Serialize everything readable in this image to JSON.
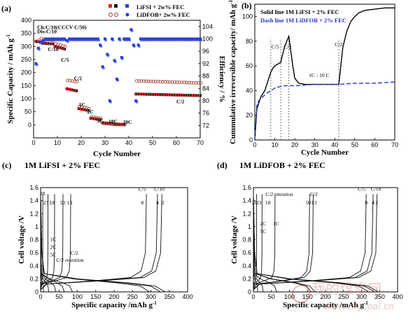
{
  "chart_data": [
    {
      "id": "a",
      "panel_label": "(a)",
      "type": "scatter",
      "xlabel": "Cycle Number",
      "ylabel": "Specific Capacity / mAh g",
      "ylabel_sup": "-1",
      "y2label": "Efficiency / %",
      "xlim": [
        0,
        70
      ],
      "ylim": [
        -50,
        400
      ],
      "y2lim": [
        68,
        106
      ],
      "xticks": [
        0,
        10,
        20,
        30,
        40,
        50,
        60,
        70
      ],
      "yticks": [
        0,
        50,
        100,
        150,
        200,
        250,
        300,
        350,
        400
      ],
      "y2ticks": [
        72,
        76,
        80,
        84,
        88,
        92,
        96,
        100,
        104
      ],
      "legend": [
        "LiFSI + 2w% FEC",
        "LiDFOB+ 2w% FEC"
      ],
      "colors": {
        "lifsi": "#e8201a",
        "lidfob": "#9a3b2c",
        "eff": "#2a3fd6"
      },
      "annotations": [
        {
          "text": "Ch:C/10(CCCV C/50)",
          "x": 1.5,
          "y": 367
        },
        {
          "text": "Dis:C/10",
          "x": 1.5,
          "y": 350
        },
        {
          "text": "C/10",
          "x": 6,
          "y": 282
        },
        {
          "text": "C/5",
          "x": 11.5,
          "y": 242
        },
        {
          "text": "C/2",
          "x": 17,
          "y": 171
        },
        {
          "text": "1C",
          "x": 19,
          "y": 71
        },
        {
          "text": "2C",
          "x": 22.5,
          "y": 44
        },
        {
          "text": "5C",
          "x": 26.5,
          "y": 8
        },
        {
          "text": "10C",
          "x": 31.5,
          "y": 6
        },
        {
          "text": "20C",
          "x": 37.5,
          "y": 3
        },
        {
          "text": "C/2",
          "x": 60,
          "y": 82
        }
      ],
      "series": [
        {
          "name": "LiFSI + 2w% FEC",
          "marker": "square-filled",
          "segments": [
            {
              "x0": 1,
              "x1": 3,
              "y0": 320,
              "y1": 316
            },
            {
              "x0": 4,
              "x1": 8,
              "y0": 312,
              "y1": 310
            },
            {
              "x0": 9,
              "x1": 13,
              "y0": 300,
              "y1": 290
            },
            {
              "x0": 14,
              "x1": 18,
              "y0": 138,
              "y1": 130
            },
            {
              "x0": 19,
              "x1": 23,
              "y0": 62,
              "y1": 55
            },
            {
              "x0": 24,
              "x1": 28,
              "y0": 25,
              "y1": 20
            },
            {
              "x0": 29,
              "x1": 33,
              "y0": 8,
              "y1": 5
            },
            {
              "x0": 34,
              "x1": 38,
              "y0": 3,
              "y1": 2
            },
            {
              "x0": 43,
              "x1": 70,
              "y0": 118,
              "y1": 112
            }
          ]
        },
        {
          "name": "LiDFOB+ 2w% FEC",
          "marker": "circle-open",
          "segments": [
            {
              "x0": 1,
              "x1": 3,
              "y0": 318,
              "y1": 330
            },
            {
              "x0": 4,
              "x1": 8,
              "y0": 326,
              "y1": 324
            },
            {
              "x0": 9,
              "x1": 13,
              "y0": 310,
              "y1": 300
            },
            {
              "x0": 14,
              "x1": 18,
              "y0": 170,
              "y1": 165
            },
            {
              "x0": 19,
              "x1": 23,
              "y0": 70,
              "y1": 62
            },
            {
              "x0": 24,
              "x1": 28,
              "y0": 30,
              "y1": 25
            },
            {
              "x0": 29,
              "x1": 33,
              "y0": 5,
              "y1": 2
            },
            {
              "x0": 34,
              "x1": 38,
              "y0": 1,
              "y1": 0
            },
            {
              "x0": 43,
              "x1": 70,
              "y0": 168,
              "y1": 160
            }
          ]
        },
        {
          "name": "",
          "axis": "y2",
          "marker": "square-filled",
          "points": [
            [
              1,
              92
            ],
            [
              2,
              97
            ],
            [
              3,
              99
            ],
            [
              4,
              99.5
            ],
            [
              5,
              100
            ],
            [
              6,
              100
            ],
            [
              7,
              100
            ],
            [
              8,
              100
            ],
            [
              9,
              100
            ],
            [
              10,
              100
            ],
            [
              11,
              100
            ],
            [
              12,
              100
            ],
            [
              13,
              100
            ],
            [
              14,
              99.5
            ],
            [
              15,
              100
            ],
            [
              16,
              100
            ],
            [
              17,
              100
            ],
            [
              18,
              100
            ],
            [
              19,
              100
            ],
            [
              20,
              100
            ],
            [
              21,
              100
            ],
            [
              22,
              100
            ],
            [
              23,
              100
            ],
            [
              24,
              100
            ],
            [
              25,
              100
            ],
            [
              26,
              100
            ],
            [
              27,
              100
            ],
            [
              28,
              98
            ],
            [
              29,
              91
            ],
            [
              30,
              100
            ],
            [
              31,
              95
            ],
            [
              32,
              80
            ],
            [
              33,
              100
            ],
            [
              34,
              93
            ],
            [
              35,
              87
            ],
            [
              36,
              100
            ],
            [
              37,
              94
            ],
            [
              38,
              100
            ],
            [
              39,
              100
            ],
            [
              40,
              100
            ],
            [
              41,
              103
            ],
            [
              42,
              98
            ],
            [
              43,
              80
            ],
            [
              44,
              98
            ],
            [
              45,
              100
            ],
            [
              46,
              100
            ],
            [
              47,
              100
            ],
            [
              48,
              100
            ],
            [
              49,
              100
            ],
            [
              50,
              100
            ],
            [
              51,
              100
            ],
            [
              52,
              100
            ],
            [
              53,
              100
            ],
            [
              54,
              100
            ],
            [
              55,
              100
            ],
            [
              56,
              100
            ],
            [
              57,
              100
            ],
            [
              58,
              100
            ],
            [
              59,
              100
            ],
            [
              60,
              100
            ],
            [
              61,
              100
            ],
            [
              62,
              100
            ],
            [
              63,
              100
            ],
            [
              64,
              100
            ],
            [
              65,
              100
            ],
            [
              66,
              100
            ],
            [
              67,
              100
            ],
            [
              68,
              100
            ],
            [
              69,
              100
            ],
            [
              70,
              100
            ]
          ]
        }
      ]
    },
    {
      "id": "b",
      "panel_label": "(b)",
      "type": "line",
      "xlabel": "Cycle Number",
      "ylabel": "Cummulative irreversible capacity/ mAh g",
      "ylabel_sup": "-1",
      "xlim": [
        0,
        70
      ],
      "ylim": [
        0,
        110
      ],
      "xticks": [
        0,
        10,
        20,
        30,
        40,
        50,
        60,
        70
      ],
      "yticks": [
        0,
        20,
        40,
        60,
        80,
        100
      ],
      "legend": [
        "Solid line 1M LiFSI + 2% FEC",
        "Dash line 1M LiDFOB + 2% FEC"
      ],
      "vlines": [
        8,
        13,
        17,
        42
      ],
      "annotations": [
        {
          "text": "C/5",
          "x": 8.3,
          "y": 74
        },
        {
          "text": "C/2",
          "x": 14.5,
          "y": 74
        },
        {
          "text": "1C - 10 C",
          "x": 27,
          "y": 51
        },
        {
          "text": "C/2",
          "x": 40,
          "y": 76
        }
      ],
      "series": [
        {
          "name": "Solid line 1M LiFSI + 2% FEC",
          "style": "solid",
          "color": "#000000",
          "points": [
            [
              0,
              0
            ],
            [
              1,
              25
            ],
            [
              2,
              30
            ],
            [
              3,
              35
            ],
            [
              5,
              40
            ],
            [
              7,
              50
            ],
            [
              8,
              55
            ],
            [
              9,
              58
            ],
            [
              10,
              60
            ],
            [
              11,
              61
            ],
            [
              12,
              62
            ],
            [
              13,
              63
            ],
            [
              14,
              70
            ],
            [
              15,
              76
            ],
            [
              16,
              80
            ],
            [
              17,
              84
            ],
            [
              18,
              72
            ],
            [
              19,
              60
            ],
            [
              20,
              50
            ],
            [
              22,
              46
            ],
            [
              25,
              45
            ],
            [
              30,
              45
            ],
            [
              35,
              45
            ],
            [
              40,
              45
            ],
            [
              42,
              45
            ],
            [
              43,
              60
            ],
            [
              44,
              75
            ],
            [
              46,
              88
            ],
            [
              48,
              96
            ],
            [
              50,
              100
            ],
            [
              52,
              103
            ],
            [
              55,
              105
            ],
            [
              60,
              106
            ],
            [
              65,
              107
            ],
            [
              70,
              107
            ]
          ]
        },
        {
          "name": "Dash line 1M LiDFOB + 2% FEC",
          "style": "dash",
          "color": "#2b35c8",
          "points": [
            [
              0,
              0
            ],
            [
              1,
              28
            ],
            [
              2,
              32
            ],
            [
              4,
              35
            ],
            [
              6,
              38
            ],
            [
              8,
              40
            ],
            [
              10,
              42
            ],
            [
              12,
              43
            ],
            [
              15,
              44
            ],
            [
              20,
              44
            ],
            [
              30,
              45
            ],
            [
              40,
              45
            ],
            [
              42,
              45
            ],
            [
              50,
              46
            ],
            [
              60,
              46
            ],
            [
              70,
              47
            ]
          ]
        }
      ]
    },
    {
      "id": "c",
      "panel_label": "(c)",
      "type": "line",
      "title": "1M LiFSI + 2% FEC",
      "xlabel": "Specific capacity /mAh g",
      "xlabel_sup": "-1",
      "ylabel": "Cell voltage /V",
      "xlim": [
        0,
        400
      ],
      "ylim": [
        0,
        1.6
      ],
      "xticks": [
        0,
        50,
        100,
        150,
        200,
        250,
        300,
        350,
        400
      ],
      "yticks": [
        0,
        0.2,
        0.4,
        0.6,
        0.8,
        1.0,
        1.2,
        1.4,
        1.6
      ],
      "annotations": [
        {
          "text": "28",
          "x": 5,
          "y": 1.48
        },
        {
          "text": "23",
          "x": 14,
          "y": 1.34
        },
        {
          "text": "18",
          "x": 31,
          "y": 1.34
        },
        {
          "text": "50",
          "x": 60,
          "y": 1.34
        },
        {
          "text": "13",
          "x": 79,
          "y": 1.34
        },
        {
          "text": "C/5",
          "x": 276,
          "y": 1.55
        },
        {
          "text": "C/10",
          "x": 323,
          "y": 1.55
        },
        {
          "text": "8",
          "x": 277,
          "y": 1.34
        },
        {
          "text": "4",
          "x": 318,
          "y": 1.34
        },
        {
          "text": "2",
          "x": 333,
          "y": 1.34
        },
        {
          "text": "1C",
          "x": 34,
          "y": 0.78
        },
        {
          "text": "2C",
          "x": 34,
          "y": 0.66
        },
        {
          "text": "5C",
          "x": 34,
          "y": 0.54
        },
        {
          "text": "C/2",
          "x": 92,
          "y": 0.57
        },
        {
          "text": "C/2 retention",
          "x": 80,
          "y": 0.46
        }
      ],
      "series": [
        {
          "name": "",
          "label": "2",
          "discharge_end": 338,
          "charge_end": 330
        },
        {
          "name": "",
          "label": "4",
          "discharge_end": 325,
          "charge_end": 318
        },
        {
          "name": "",
          "label": "8",
          "discharge_end": 295,
          "charge_end": 288
        },
        {
          "name": "",
          "label": "13",
          "discharge_end": 86,
          "charge_end": 82
        },
        {
          "name": "",
          "label": "50",
          "discharge_end": 64,
          "charge_end": 61
        },
        {
          "name": "",
          "label": "18",
          "discharge_end": 41,
          "charge_end": 38
        },
        {
          "name": "",
          "label": "23",
          "discharge_end": 22,
          "charge_end": 20
        },
        {
          "name": "",
          "label": "28",
          "discharge_end": 8,
          "charge_end": 6
        }
      ]
    },
    {
      "id": "d",
      "panel_label": "(d)",
      "type": "line",
      "title": "1M LiDFOB + 2% FEC",
      "xlabel": "Specific capacity /mAh g",
      "xlabel_sup": "-1",
      "ylabel": "Cell voltage /V",
      "xlim": [
        0,
        400
      ],
      "ylim": [
        0,
        1.6
      ],
      "xticks": [
        0,
        50,
        100,
        150,
        200,
        250,
        300,
        350,
        400
      ],
      "yticks": [
        0,
        0.2,
        0.4,
        0.6,
        0.8,
        1.0,
        1.2,
        1.4,
        1.6
      ],
      "annotations": [
        {
          "text": "28",
          "x": 3,
          "y": 1.34
        },
        {
          "text": "23",
          "x": 15,
          "y": 1.34
        },
        {
          "text": "18",
          "x": 40,
          "y": 1.34
        },
        {
          "text": "C/2 retention",
          "x": 72,
          "y": 1.47
        },
        {
          "text": "C/2",
          "x": 168,
          "y": 1.47
        },
        {
          "text": "50",
          "x": 152,
          "y": 1.34
        },
        {
          "text": "13",
          "x": 168,
          "y": 1.34
        },
        {
          "text": "C/5",
          "x": 300,
          "y": 1.55
        },
        {
          "text": "C/10",
          "x": 340,
          "y": 1.55
        },
        {
          "text": "8",
          "x": 313,
          "y": 1.34
        },
        {
          "text": "4",
          "x": 332,
          "y": 1.34
        },
        {
          "text": "2",
          "x": 342,
          "y": 1.34
        },
        {
          "text": "2C",
          "x": 27,
          "y": 1.02
        },
        {
          "text": "1C",
          "x": 63,
          "y": 1.02
        },
        {
          "text": "5C",
          "x": 27,
          "y": 0.9
        }
      ],
      "series": [
        {
          "name": "",
          "label": "2",
          "discharge_end": 345,
          "charge_end": 343
        },
        {
          "name": "",
          "label": "4",
          "discharge_end": 335,
          "charge_end": 332
        },
        {
          "name": "",
          "label": "8",
          "discharge_end": 318,
          "charge_end": 313
        },
        {
          "name": "",
          "label": "13",
          "discharge_end": 170,
          "charge_end": 166
        },
        {
          "name": "",
          "label": "50",
          "discharge_end": 160,
          "charge_end": 156
        },
        {
          "name": "",
          "label": "18",
          "discharge_end": 64,
          "charge_end": 60
        },
        {
          "name": "",
          "label": "23",
          "discharge_end": 27,
          "charge_end": 24
        },
        {
          "name": "",
          "label": "28",
          "discharge_end": 12,
          "charge_end": 9
        }
      ]
    }
  ],
  "watermark": {
    "cn": "我的煤炭网",
    "url": "www.mycoal.cn"
  }
}
